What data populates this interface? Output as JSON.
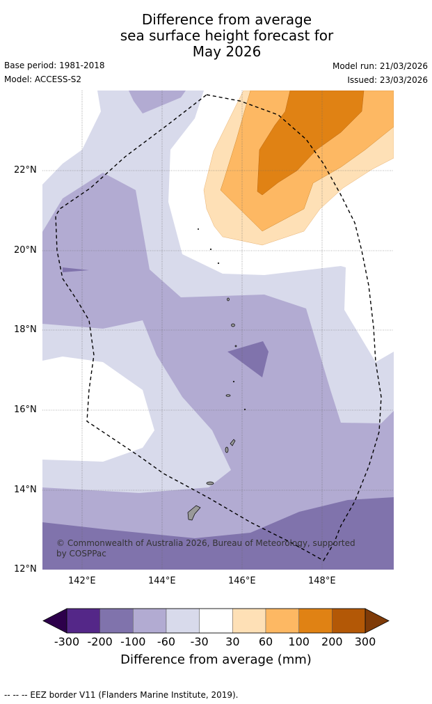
{
  "title": [
    "Difference from average",
    "sea surface height forecast for",
    "May 2026"
  ],
  "base_period": "Base period: 1981-2018",
  "model": "Model: ACCESS-S2",
  "model_run": "Model run: 21/03/2026",
  "issued": "Issued: 23/03/2026",
  "copyright": "© Commonwealth of Australia 2026, Bureau of Meteorology, supported by COSPPac",
  "lat_labels": [
    "22°N",
    "20°N",
    "18°N",
    "16°N",
    "14°N",
    "12°N"
  ],
  "lon_labels": [
    "142°E",
    "144°E",
    "146°E",
    "148°E"
  ],
  "colorbar": {
    "labels": [
      "-300",
      "-200",
      "-100",
      "-60",
      "-30",
      "30",
      "60",
      "100",
      "200",
      "300"
    ],
    "colors": [
      "#2d004b",
      "#542788",
      "#8073ac",
      "#b2abd2",
      "#d8daeb",
      "#ffffff",
      "#fee0b6",
      "#fdb863",
      "#e08214",
      "#b35806",
      "#7f3b08"
    ],
    "title": "Difference from average (mm)"
  },
  "footer": "--  --  -- EEZ border V11 (Flanders Marine Institute, 2019)."
}
